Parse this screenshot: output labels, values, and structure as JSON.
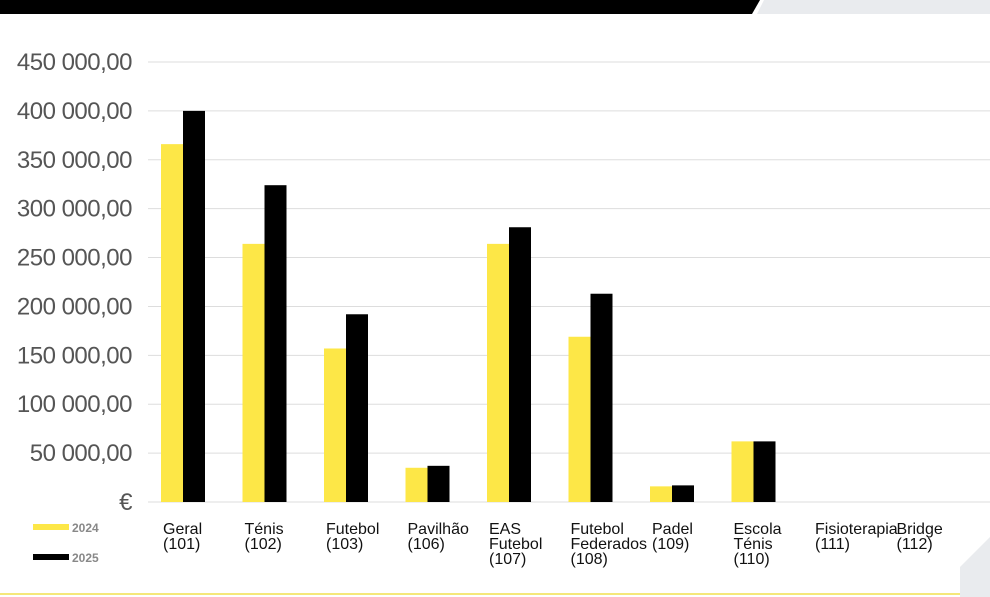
{
  "chart_data": {
    "type": "bar",
    "categories": [
      [
        "Geral",
        "(101)"
      ],
      [
        "Ténis",
        "(102)"
      ],
      [
        "Futebol",
        "(103)"
      ],
      [
        "Pavilhão",
        "(106)"
      ],
      [
        "EAS",
        "Futebol",
        "(107)"
      ],
      [
        "Futebol",
        "Federados",
        "(108)"
      ],
      [
        "Padel",
        "(109)"
      ],
      [
        "Escola",
        "Ténis",
        "(110)"
      ],
      [
        "Fisioterapia",
        "(111)"
      ],
      [
        "Bridge",
        "(112)"
      ]
    ],
    "series": [
      {
        "name": "2024",
        "color": "#fde747",
        "values": [
          366000,
          264000,
          157000,
          35000,
          264000,
          169000,
          16000,
          62000,
          0,
          0
        ]
      },
      {
        "name": "2025",
        "color": "#000000",
        "values": [
          400000,
          324000,
          192000,
          37000,
          281000,
          213000,
          17000,
          62000,
          0,
          0
        ]
      }
    ],
    "y_ticks": [
      "€",
      "50 000,00",
      "100 000,00",
      "150 000,00",
      "200 000,00",
      "250 000,00",
      "300 000,00",
      "350 000,00",
      "400 000,00",
      "450 000,00"
    ],
    "ylim": [
      0,
      450000
    ],
    "grid": true,
    "legend_position": "bottom-left"
  },
  "colors": {
    "accent_yellow": "#fde747",
    "top_band": "#000000",
    "corner_gray": "#e9ebee",
    "grid": "#dddddd"
  }
}
